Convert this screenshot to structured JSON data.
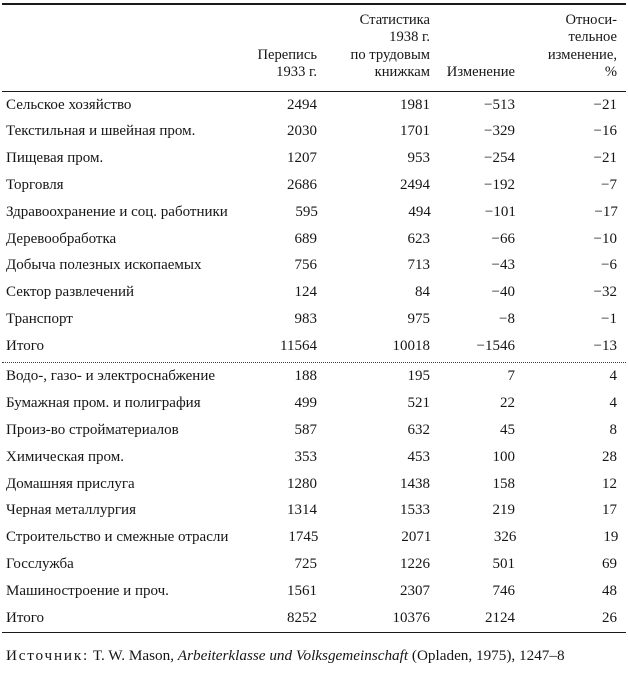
{
  "table": {
    "header": {
      "census": "Перепись\n1933 г.",
      "stats": "Статистика\n1938 г.\nпо трудовым\nкнижкам",
      "change": "Изменение",
      "relative": "Относи-\nтельное\nизменение,\n%"
    },
    "declining": {
      "rows": [
        {
          "label": "Сельское хозяйство",
          "census": "2494",
          "stats": "1981",
          "change": "−513",
          "rel": "−21"
        },
        {
          "label": "Текстильная и швейная пром.",
          "census": "2030",
          "stats": "1701",
          "change": "−329",
          "rel": "−16"
        },
        {
          "label": "Пищевая пром.",
          "census": "1207",
          "stats": "953",
          "change": "−254",
          "rel": "−21"
        },
        {
          "label": "Торговля",
          "census": "2686",
          "stats": "2494",
          "change": "−192",
          "rel": "−7"
        },
        {
          "label": "Здравоохранение и соц. работники",
          "census": "595",
          "stats": "494",
          "change": "−101",
          "rel": "−17"
        },
        {
          "label": "Деревообработка",
          "census": "689",
          "stats": "623",
          "change": "−66",
          "rel": "−10"
        },
        {
          "label": "Добыча полезных ископаемых",
          "census": "756",
          "stats": "713",
          "change": "−43",
          "rel": "−6"
        },
        {
          "label": "Сектор развлечений",
          "census": "124",
          "stats": "84",
          "change": "−40",
          "rel": "−32"
        },
        {
          "label": "Транспорт",
          "census": "983",
          "stats": "975",
          "change": "−8",
          "rel": "−1"
        },
        {
          "label": "Итого",
          "census": "11564",
          "stats": "10018",
          "change": "−1546",
          "rel": "−13"
        }
      ]
    },
    "growing": {
      "rows": [
        {
          "label": "Водо-, газо- и электроснабжение",
          "census": "188",
          "stats": "195",
          "change": "7",
          "rel": "4"
        },
        {
          "label": "Бумажная пром. и полиграфия",
          "census": "499",
          "stats": "521",
          "change": "22",
          "rel": "4"
        },
        {
          "label": "Произ-во стройматериалов",
          "census": "587",
          "stats": "632",
          "change": "45",
          "rel": "8"
        },
        {
          "label": "Химическая пром.",
          "census": "353",
          "stats": "453",
          "change": "100",
          "rel": "28"
        },
        {
          "label": "Домашняя прислуга",
          "census": "1280",
          "stats": "1438",
          "change": "158",
          "rel": "12"
        },
        {
          "label": "Черная металлургия",
          "census": "1314",
          "stats": "1533",
          "change": "219",
          "rel": "17"
        },
        {
          "label": "Строительство и смежные отрасли",
          "census": "1745",
          "stats": "2071",
          "change": "326",
          "rel": "19"
        },
        {
          "label": "Госслужба",
          "census": "725",
          "stats": "1226",
          "change": "501",
          "rel": "69"
        },
        {
          "label": "Машиностроение и проч.",
          "census": "1561",
          "stats": "2307",
          "change": "746",
          "rel": "48"
        },
        {
          "label": "Итого",
          "census": "8252",
          "stats": "10376",
          "change": "2124",
          "rel": "26"
        }
      ]
    }
  },
  "source": {
    "label": "Источник:",
    "author": "T. W. Mason,",
    "work_title": "Arbeiterklasse und Volksgemeinschaft",
    "publication": "(Opladen, 1975), 1247–8"
  }
}
